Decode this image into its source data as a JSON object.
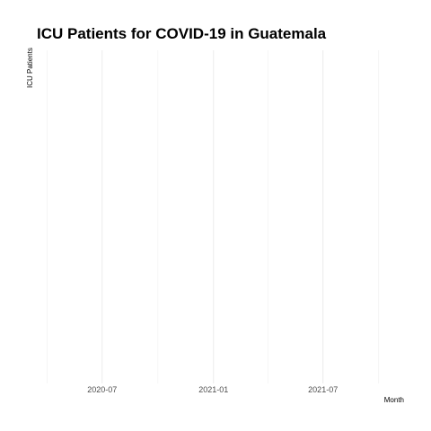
{
  "chart_data": {
    "type": "line",
    "title": "ICU Patients for COVID-19 in Guatemala",
    "xlabel": "Month",
    "ylabel": "ICU Patients",
    "x_tick_labels": [
      "2020-07",
      "2021-01",
      "2021-07"
    ],
    "x_ticks": [
      "2020-07-01",
      "2021-01-01",
      "2021-07-01"
    ],
    "x_minor_ticks": [
      "2020-04-01",
      "2020-10-01",
      "2021-04-01",
      "2021-10-01"
    ],
    "xlim": [
      "2020-03-15",
      "2021-11-15"
    ],
    "grid": true,
    "series": []
  }
}
